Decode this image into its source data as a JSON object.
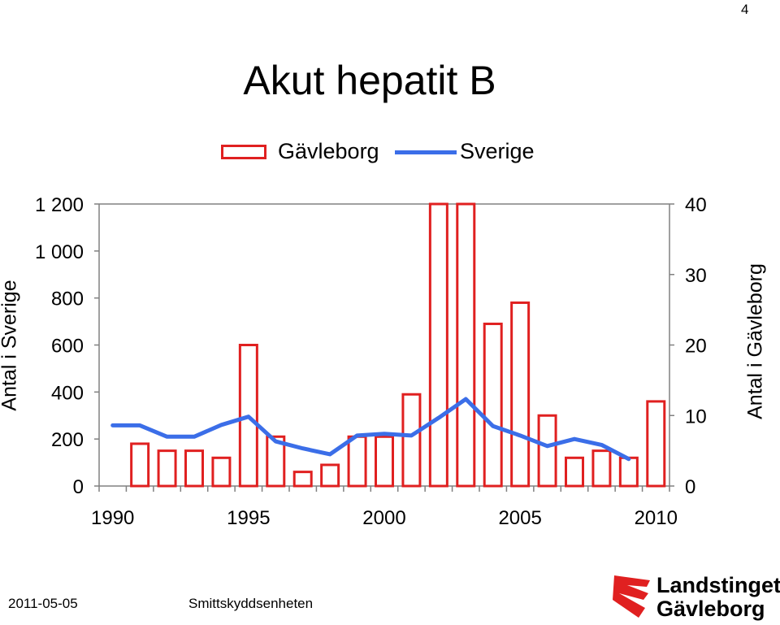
{
  "page_number": "4",
  "footer": {
    "date": "2011-05-05",
    "unit": "Smittskyddsenheten",
    "logo_line1": "Landstinget",
    "logo_line2": "Gävleborg"
  },
  "colors": {
    "bars": "#e02020",
    "line": "#3b6ee8",
    "axis": "#808080"
  },
  "chart_data": {
    "type": "bar",
    "title": "Akut hepatit B",
    "legend": {
      "placement": "top",
      "entries": [
        "Gävleborg",
        "Sverige"
      ]
    },
    "ylabel_left": "Antal i Sverige",
    "ylabel_right": "Antal i Gävleborg",
    "x_tick_labels": [
      "1990",
      "1995",
      "2000",
      "2005",
      "2010"
    ],
    "y_left_tick_labels": [
      "0",
      "200",
      "400",
      "600",
      "800",
      "1 000",
      "1 200"
    ],
    "y_right_tick_labels": [
      "0",
      "10",
      "20",
      "30",
      "40"
    ],
    "ylim_left": [
      0,
      1200
    ],
    "ylim_right": [
      0,
      40
    ],
    "xlim": [
      1989.5,
      2010.5
    ],
    "grid": false,
    "series": [
      {
        "name": "Gävleborg",
        "kind": "bar",
        "axis": "right",
        "x": [
          1991,
          1992,
          1993,
          1994,
          1995,
          1996,
          1997,
          1998,
          1999,
          2000,
          2001,
          2002,
          2003,
          2004,
          2005,
          2006,
          2007,
          2008,
          2009,
          2010
        ],
        "values": [
          6,
          5,
          5,
          4,
          20,
          7,
          2,
          3,
          7,
          7,
          13,
          40,
          40,
          23,
          26,
          10,
          4,
          5,
          4,
          12
        ]
      },
      {
        "name": "Sverige",
        "kind": "line",
        "axis": "left",
        "x": [
          1990,
          1991,
          1992,
          1993,
          1994,
          1995,
          1996,
          1997,
          1998,
          1999,
          2000,
          2001,
          2002,
          2003,
          2004,
          2005,
          2006,
          2007,
          2008,
          2009
        ],
        "values": [
          258,
          258,
          210,
          210,
          260,
          295,
          190,
          160,
          135,
          215,
          222,
          215,
          290,
          370,
          255,
          215,
          170,
          200,
          175,
          115
        ]
      }
    ]
  }
}
